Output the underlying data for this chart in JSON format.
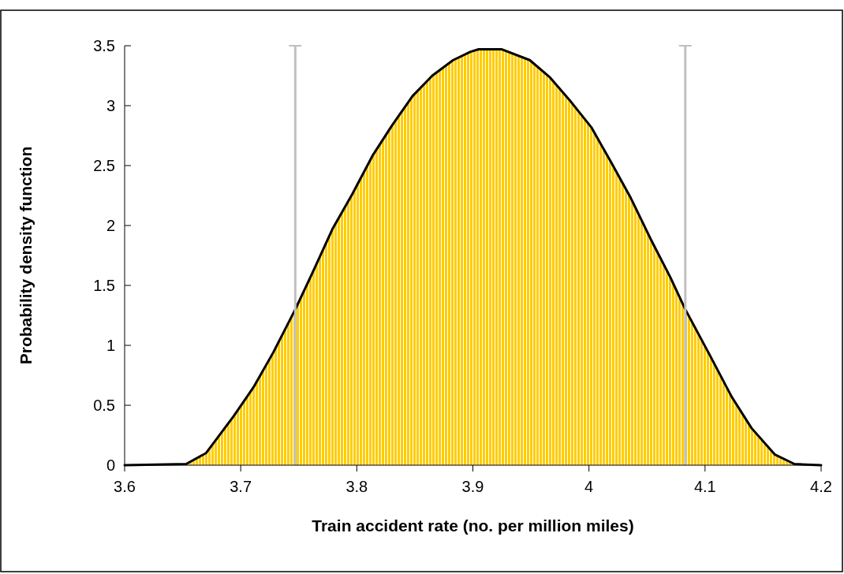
{
  "chart_data": {
    "type": "area",
    "xlabel": "Train accident rate (no. per million miles)",
    "ylabel": "Probability density function",
    "xlim": [
      3.6,
      4.2
    ],
    "xticks": [
      3.6,
      3.7,
      3.8,
      3.9,
      4,
      4.1,
      4.2
    ],
    "ylim": [
      0,
      3.5
    ],
    "yticks": [
      0,
      0.5,
      1,
      1.5,
      2,
      2.5,
      3,
      3.5
    ],
    "grid": false,
    "series": [
      {
        "color": "#ffcc00",
        "x": [
          3.6,
          3.653,
          3.67,
          3.677,
          3.694,
          3.711,
          3.728,
          3.747,
          3.762,
          3.779,
          3.796,
          3.814,
          3.83,
          3.848,
          3.865,
          3.883,
          3.898,
          3.905,
          3.925,
          3.949,
          3.966,
          3.983,
          4.002,
          4.019,
          4.036,
          4.053,
          4.07,
          4.083,
          4.104,
          4.123,
          4.14,
          4.16,
          4.177,
          4.2
        ],
        "values": [
          0,
          0.01,
          0.1,
          0.19,
          0.41,
          0.65,
          0.94,
          1.3,
          1.61,
          1.97,
          2.26,
          2.59,
          2.83,
          3.08,
          3.25,
          3.38,
          3.45,
          3.47,
          3.47,
          3.38,
          3.24,
          3.05,
          2.82,
          2.53,
          2.23,
          1.89,
          1.57,
          1.3,
          0.92,
          0.57,
          0.31,
          0.09,
          0.01,
          0
        ]
      }
    ],
    "ref_lines": [
      {
        "axis": "x",
        "value": 3.747,
        "color": "#c0c0c0"
      },
      {
        "axis": "x",
        "value": 4.083,
        "color": "#c0c0c0"
      }
    ]
  }
}
